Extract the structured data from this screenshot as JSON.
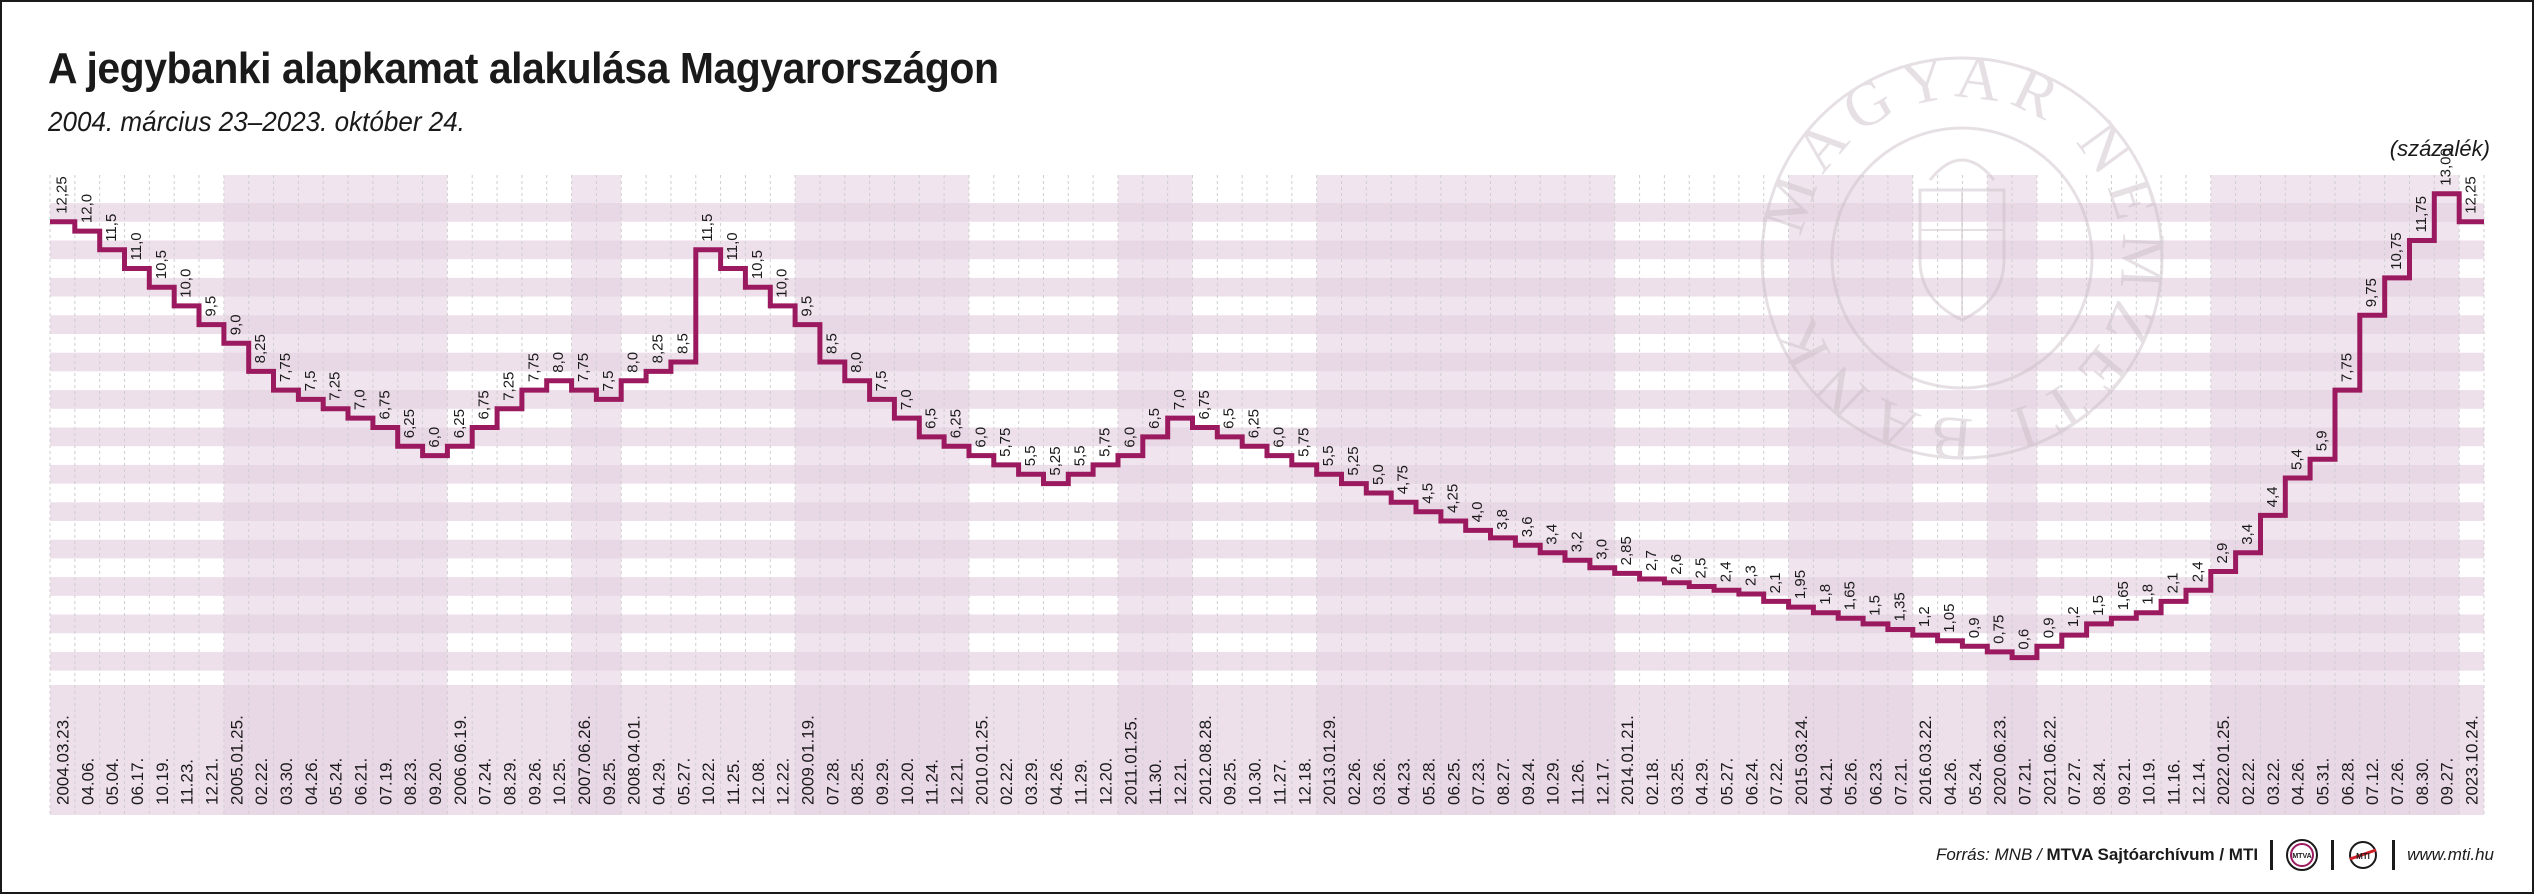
{
  "header": {
    "title": "A jegybanki alapkamat alakulása Magyarországon",
    "subtitle": "2004. március 23–2023. október 24.",
    "unit": "(százalék)"
  },
  "watermark": {
    "text": "MAGYAR NEMZETI BANK"
  },
  "footer": {
    "source_prefix": "Forrás: MNB /",
    "source_bold": "MTVA Sajtóarchívum / MTI",
    "logo_mtva": "MTVA",
    "logo_mti": "MTI",
    "url": "www.mti.hu"
  },
  "colors": {
    "line": "#9b1a5f",
    "band": "#ede0eb",
    "band_dark": "#e3d0e0",
    "grid": "#cfcfcf",
    "text": "#1a1a1a"
  },
  "chart_data": {
    "type": "line",
    "step": true,
    "title": "A jegybanki alapkamat alakulása Magyarországon",
    "subtitle": "2004. március 23–2023. október 24.",
    "ylabel": "(százalék)",
    "ylim": [
      0,
      13.5
    ],
    "grid": true,
    "categories": [
      "2004.03.23.",
      "04.06.",
      "05.04.",
      "06.17.",
      "10.19.",
      "11.23.",
      "12.21.",
      "2005.01.25.",
      "02.22.",
      "03.30.",
      "04.26.",
      "05.24.",
      "06.21.",
      "07.19.",
      "08.23.",
      "09.20.",
      "2006.06.19.",
      "07.24.",
      "08.29.",
      "09.26.",
      "10.25.",
      "2007.06.26.",
      "09.25.",
      "2008.04.01.",
      "04.29.",
      "05.27.",
      "10.22.",
      "11.25.",
      "12.08.",
      "12.22.",
      "2009.01.19.",
      "07.28.",
      "08.25.",
      "09.29.",
      "10.20.",
      "11.24.",
      "12.21.",
      "2010.01.25.",
      "02.22.",
      "03.29.",
      "04.26.",
      "11.29.",
      "12.20.",
      "2011.01.25.",
      "11.30.",
      "12.21.",
      "2012.08.28.",
      "09.25.",
      "10.30.",
      "11.27.",
      "12.18.",
      "2013.01.29.",
      "02.26.",
      "03.26.",
      "04.23.",
      "05.28.",
      "06.25.",
      "07.23.",
      "08.27.",
      "09.24.",
      "10.29.",
      "11.26.",
      "12.17.",
      "2014.01.21.",
      "02.18.",
      "03.25.",
      "04.29.",
      "05.27.",
      "06.24.",
      "07.22.",
      "2015.03.24.",
      "04.21.",
      "05.26.",
      "06.23.",
      "07.21.",
      "2016.03.22.",
      "04.26.",
      "05.24.",
      "2020.06.23.",
      "07.21.",
      "2021.06.22.",
      "07.27.",
      "08.24.",
      "09.21.",
      "10.19.",
      "11.16.",
      "12.14.",
      "2022.01.25.",
      "02.22.",
      "03.22.",
      "04.26.",
      "05.31.",
      "06.28.",
      "07.12.",
      "07.26.",
      "08.30.",
      "09.27.",
      "2023.10.24."
    ],
    "values": [
      12.25,
      12.0,
      11.5,
      11.0,
      10.5,
      10.0,
      9.5,
      9.0,
      8.25,
      7.75,
      7.5,
      7.25,
      7.0,
      6.75,
      6.25,
      6.0,
      6.25,
      6.75,
      7.25,
      7.75,
      8.0,
      7.75,
      7.5,
      8.0,
      8.25,
      8.5,
      11.5,
      11.0,
      10.5,
      10.0,
      9.5,
      8.5,
      8.0,
      7.5,
      7.0,
      6.5,
      6.25,
      6.0,
      5.75,
      5.5,
      5.25,
      5.5,
      5.75,
      6.0,
      6.5,
      7.0,
      6.75,
      6.5,
      6.25,
      6.0,
      5.75,
      5.5,
      5.25,
      5.0,
      4.75,
      4.5,
      4.25,
      4.0,
      3.8,
      3.6,
      3.4,
      3.2,
      3.0,
      2.85,
      2.7,
      2.6,
      2.5,
      2.4,
      2.3,
      2.1,
      1.95,
      1.8,
      1.65,
      1.5,
      1.35,
      1.2,
      1.05,
      0.9,
      0.75,
      0.6,
      0.9,
      1.2,
      1.5,
      1.65,
      1.8,
      2.1,
      2.4,
      2.9,
      3.4,
      4.4,
      5.4,
      5.9,
      7.75,
      9.75,
      10.75,
      11.75,
      13.0,
      12.25
    ],
    "value_labels": [
      "12,25",
      "12,0",
      "11,5",
      "11,0",
      "10,5",
      "10,0",
      "9,5",
      "9,0",
      "8,25",
      "7,75",
      "7,5",
      "7,25",
      "7,0",
      "6,75",
      "6,25",
      "6,0",
      "6,25",
      "6,75",
      "7,25",
      "7,75",
      "8,0",
      "7,75",
      "7,5",
      "8,0",
      "8,25",
      "8,5",
      "11,5",
      "11,0",
      "10,5",
      "10,0",
      "9,5",
      "8,5",
      "8,0",
      "7,5",
      "7,0",
      "6,5",
      "6,25",
      "6,0",
      "5,75",
      "5,5",
      "5,25",
      "5,5",
      "5,75",
      "6,0",
      "6,5",
      "7,0",
      "6,75",
      "6,5",
      "6,25",
      "6,0",
      "5,75",
      "5,5",
      "5,25",
      "5,0",
      "4,75",
      "4,5",
      "4,25",
      "4,0",
      "3,8",
      "3,6",
      "3,4",
      "3,2",
      "3,0",
      "2,85",
      "2,7",
      "2,6",
      "2,5",
      "2,4",
      "2,3",
      "2,1",
      "1,95",
      "1,8",
      "1,65",
      "1,5",
      "1,35",
      "1,2",
      "1,05",
      "0,9",
      "0,75",
      "0,6",
      "0,9",
      "1,2",
      "1,5",
      "1,65",
      "1,8",
      "2,1",
      "2,4",
      "2,9",
      "3,4",
      "4,4",
      "5,4",
      "5,9",
      "7,75",
      "9,75",
      "10,75",
      "11,75",
      "13,00",
      "12,25"
    ]
  }
}
